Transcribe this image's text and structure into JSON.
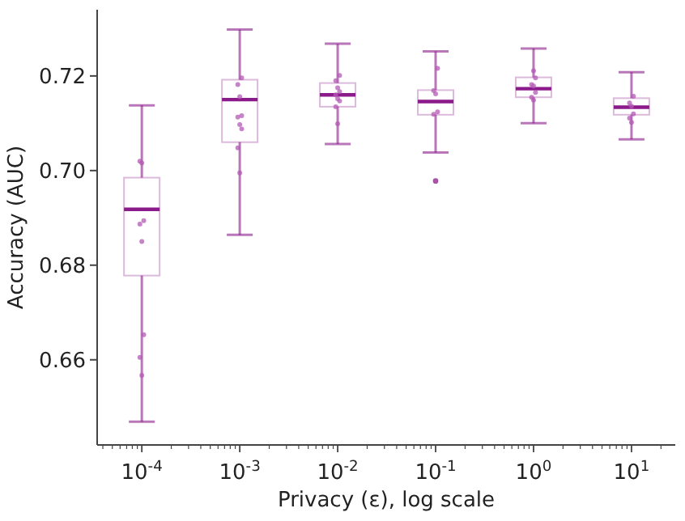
{
  "chart_data": {
    "type": "box",
    "xlabel": "Privacy (ε), log scale",
    "ylabel": "Accuracy (AUC)",
    "log": "x",
    "marker": "circle",
    "x": [
      0.0001,
      0.001,
      0.01,
      0.1,
      1,
      10
    ],
    "xlim": [
      3.5e-05,
      28
    ],
    "ylim": [
      0.642,
      0.734
    ],
    "xticks": [
      {
        "value": 0.0001,
        "label": "10$^{-4}$"
      },
      {
        "value": 0.001,
        "label": "10$^{-3}$"
      },
      {
        "value": 0.01,
        "label": "10$^{-2}$"
      },
      {
        "value": 0.1,
        "label": "10$^{-1}$"
      },
      {
        "value": 1,
        "label": "10$^{0}$"
      },
      {
        "value": 10,
        "label": "10$^{1}$"
      },
      {
        "value": 4e-05,
        "label": null
      },
      {
        "value": 5e-05,
        "label": null
      },
      {
        "value": 6e-05,
        "label": null
      },
      {
        "value": 7e-05,
        "label": null
      },
      {
        "value": 8e-05,
        "label": null
      },
      {
        "value": 9e-05,
        "label": null
      },
      {
        "value": 0.0002,
        "label": null
      },
      {
        "value": 0.0003,
        "label": null
      },
      {
        "value": 0.0004,
        "label": null
      },
      {
        "value": 0.0005,
        "label": null
      },
      {
        "value": 0.0006,
        "label": null
      },
      {
        "value": 0.0007,
        "label": null
      },
      {
        "value": 0.0008,
        "label": null
      },
      {
        "value": 0.0009,
        "label": null
      },
      {
        "value": 0.002,
        "label": null
      },
      {
        "value": 0.003,
        "label": null
      },
      {
        "value": 0.004,
        "label": null
      },
      {
        "value": 0.005,
        "label": null
      },
      {
        "value": 0.006,
        "label": null
      },
      {
        "value": 0.007,
        "label": null
      },
      {
        "value": 0.008,
        "label": null
      },
      {
        "value": 0.009,
        "label": null
      },
      {
        "value": 0.02,
        "label": null
      },
      {
        "value": 0.03,
        "label": null
      },
      {
        "value": 0.04,
        "label": null
      },
      {
        "value": 0.05,
        "label": null
      },
      {
        "value": 0.06,
        "label": null
      },
      {
        "value": 0.07,
        "label": null
      },
      {
        "value": 0.08,
        "label": null
      },
      {
        "value": 0.09,
        "label": null
      },
      {
        "value": 0.2,
        "label": null
      },
      {
        "value": 0.3,
        "label": null
      },
      {
        "value": 0.4,
        "label": null
      },
      {
        "value": 0.5,
        "label": null
      },
      {
        "value": 0.6,
        "label": null
      },
      {
        "value": 0.7,
        "label": null
      },
      {
        "value": 0.8,
        "label": null
      },
      {
        "value": 0.9,
        "label": null
      },
      {
        "value": 2,
        "label": null
      },
      {
        "value": 3,
        "label": null
      },
      {
        "value": 4,
        "label": null
      },
      {
        "value": 5,
        "label": null
      },
      {
        "value": 6,
        "label": null
      },
      {
        "value": 7,
        "label": null
      },
      {
        "value": 8,
        "label": null
      },
      {
        "value": 9,
        "label": null
      },
      {
        "value": 20,
        "label": null
      }
    ],
    "yticks": [
      0.66,
      0.68,
      {
        "value": 0.7,
        "label": "0.70"
      },
      0.72
    ],
    "series": [
      {
        "color": "#8b1a8b",
        "boxes": [
          {
            "low": 0.6469,
            "q1": 0.6778,
            "median": 0.6918,
            "q3": 0.6985,
            "high": 0.7138
          },
          {
            "low": 0.6864,
            "q1": 0.706,
            "median": 0.715,
            "q3": 0.7192,
            "high": 0.7298
          },
          {
            "low": 0.7056,
            "q1": 0.7135,
            "median": 0.716,
            "q3": 0.7185,
            "high": 0.7268
          },
          {
            "low": 0.7038,
            "q1": 0.7118,
            "median": 0.7146,
            "q3": 0.717,
            "high": 0.7252,
            "outliers": [
              0.6978
            ]
          },
          {
            "low": 0.71,
            "q1": 0.7155,
            "median": 0.7173,
            "q3": 0.7197,
            "high": 0.7258
          },
          {
            "low": 0.7066,
            "q1": 0.7118,
            "median": 0.7134,
            "q3": 0.7153,
            "high": 0.7208
          }
        ]
      },
      {
        "type": "scatter",
        "color": "#b45ab4",
        "x": [
          0.0001,
          0.0001,
          0.0001,
          0.0001,
          0.0001,
          0.0001,
          0.0001,
          0.0001,
          0.001,
          0.001,
          0.001,
          0.001,
          0.001,
          0.001,
          0.001,
          0.001,
          0.001,
          0.01,
          0.01,
          0.01,
          0.01,
          0.01,
          0.01,
          0.01,
          0.01,
          0.01,
          0.1,
          0.1,
          0.1,
          0.1,
          0.1,
          1,
          1,
          1,
          1,
          1,
          1,
          1,
          10,
          10,
          10,
          10,
          10,
          10
        ],
        "values": [
          0.702,
          0.7016,
          0.6894,
          0.6887,
          0.685,
          0.6653,
          0.6605,
          0.6567,
          0.7196,
          0.7182,
          0.7156,
          0.7116,
          0.7113,
          0.7097,
          0.7088,
          0.7048,
          0.6995,
          0.7201,
          0.719,
          0.7175,
          0.7167,
          0.716,
          0.7152,
          0.7147,
          0.7135,
          0.7099,
          0.7216,
          0.7169,
          0.7162,
          0.7124,
          0.7119,
          0.7211,
          0.7196,
          0.7182,
          0.7179,
          0.7165,
          0.7155,
          0.7149,
          0.7157,
          0.7143,
          0.7136,
          0.712,
          0.7111,
          0.7102
        ]
      }
    ]
  }
}
